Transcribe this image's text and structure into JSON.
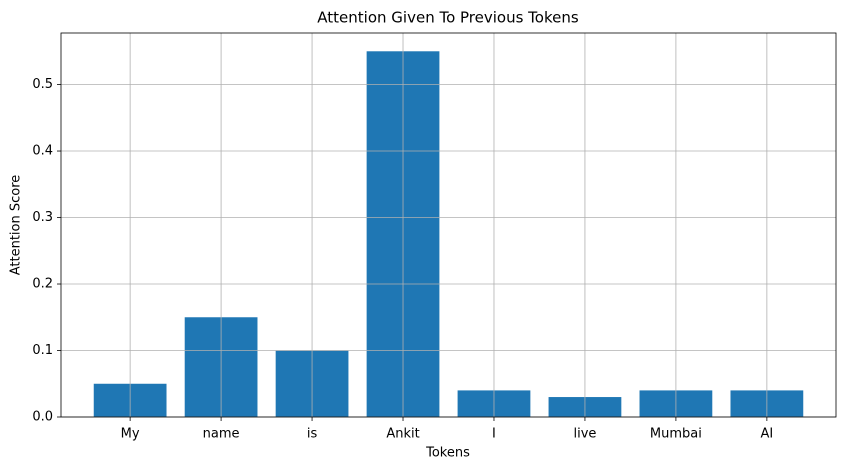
{
  "chart_data": {
    "type": "bar",
    "title": "Attention Given To Previous Tokens",
    "x_label": "Tokens",
    "y_label": "Attention Score",
    "categories": [
      "My",
      "name",
      "is",
      "Ankit",
      "I",
      "live",
      "Mumbai",
      "AI"
    ],
    "values": [
      0.05,
      0.15,
      0.1,
      0.55,
      0.04,
      0.03,
      0.04,
      0.04
    ],
    "color": "#1f77b4",
    "ylim": [
      0,
      0.5775
    ],
    "yticks": [
      {
        "value": 0,
        "label": "0.0"
      },
      0.1,
      0.2,
      0.3,
      0.4,
      0.5
    ],
    "grid": true
  }
}
